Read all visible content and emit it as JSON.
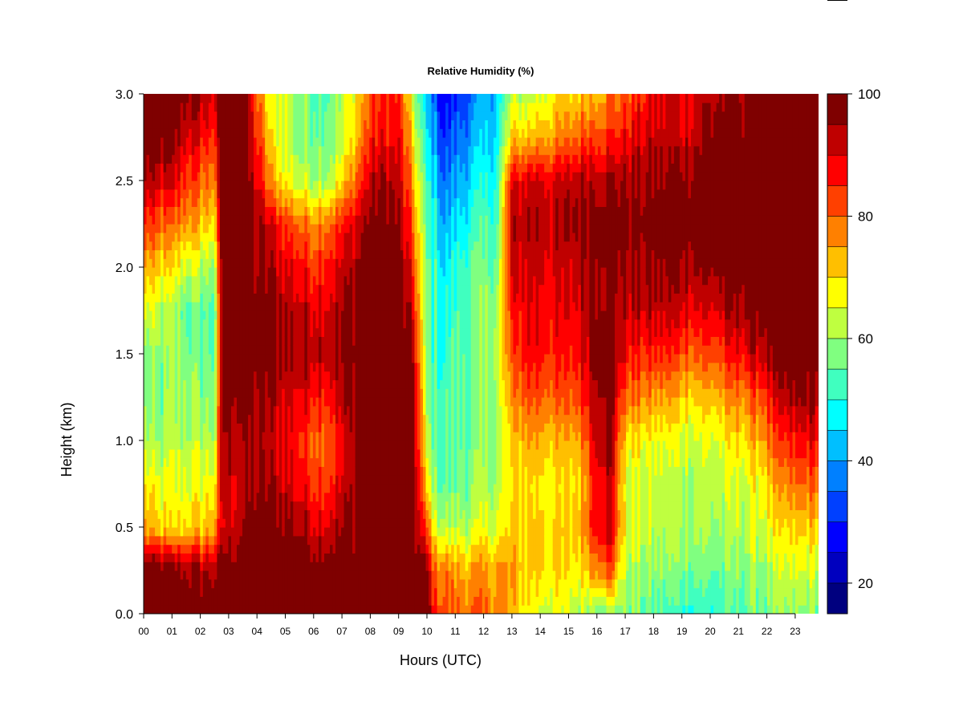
{
  "chart_data": {
    "type": "heatmap",
    "title": "Relative Humidity (%)",
    "xlabel": "Hours (UTC)",
    "ylabel": "Height (km)",
    "xlim": [
      0,
      23.9
    ],
    "ylim": [
      0.0,
      3.0
    ],
    "x_ticks": [
      "00",
      "01",
      "02",
      "03",
      "04",
      "05",
      "06",
      "07",
      "08",
      "09",
      "10",
      "11",
      "12",
      "13",
      "14",
      "15",
      "16",
      "17",
      "18",
      "19",
      "20",
      "21",
      "22",
      "23"
    ],
    "y_ticks": [
      "0.0",
      "0.5",
      "1.0",
      "1.5",
      "2.0",
      "2.5",
      "3.0"
    ],
    "colorbar": {
      "range": [
        15,
        100
      ],
      "levels": [
        15,
        20,
        25,
        30,
        35,
        40,
        45,
        50,
        55,
        60,
        65,
        70,
        75,
        80,
        85,
        90,
        95,
        100
      ],
      "colors": [
        "#00007f",
        "#0000bf",
        "#0000ff",
        "#0040ff",
        "#0080ff",
        "#00bfff",
        "#00ffff",
        "#40ffbf",
        "#80ff80",
        "#bfff40",
        "#ffff00",
        "#ffbf00",
        "#ff8000",
        "#ff4000",
        "#ff0000",
        "#bf0000",
        "#7f0000"
      ],
      "labels": [
        "20",
        "40",
        "60",
        "80",
        "100"
      ],
      "label_values": [
        20,
        40,
        60,
        80,
        100
      ]
    },
    "heights": [
      0.0,
      0.25,
      0.5,
      0.75,
      1.0,
      1.25,
      1.5,
      1.75,
      2.0,
      2.25,
      2.5,
      2.75,
      3.0
    ],
    "columns": [
      {
        "hour": 0.0,
        "rh": [
          100,
          100,
          75,
          70,
          62,
          58,
          58,
          65,
          75,
          85,
          95,
          100,
          100
        ]
      },
      {
        "hour": 0.5,
        "rh": [
          100,
          100,
          70,
          65,
          58,
          55,
          58,
          62,
          70,
          80,
          90,
          98,
          100
        ]
      },
      {
        "hour": 1.0,
        "rh": [
          100,
          98,
          68,
          66,
          62,
          60,
          58,
          60,
          68,
          78,
          90,
          97,
          100
        ]
      },
      {
        "hour": 1.5,
        "rh": [
          100,
          96,
          70,
          66,
          62,
          60,
          58,
          56,
          65,
          78,
          85,
          92,
          98
        ]
      },
      {
        "hour": 2.0,
        "rh": [
          100,
          95,
          70,
          66,
          62,
          58,
          56,
          55,
          62,
          72,
          80,
          88,
          95
        ]
      },
      {
        "hour": 2.5,
        "rh": [
          100,
          95,
          75,
          68,
          62,
          58,
          56,
          55,
          60,
          70,
          78,
          85,
          92
        ]
      },
      {
        "hour": 2.8,
        "rh": [
          100,
          98,
          90,
          92,
          95,
          98,
          100,
          100,
          100,
          100,
          100,
          100,
          100
        ]
      },
      {
        "hour": 3.5,
        "rh": [
          100,
          100,
          95,
          92,
          95,
          98,
          100,
          100,
          100,
          100,
          100,
          100,
          100
        ]
      },
      {
        "hour": 4.0,
        "rh": [
          100,
          100,
          100,
          95,
          92,
          95,
          98,
          98,
          95,
          95,
          90,
          85,
          80
        ]
      },
      {
        "hour": 4.5,
        "rh": [
          100,
          100,
          98,
          95,
          92,
          95,
          98,
          98,
          95,
          90,
          75,
          68,
          65
        ]
      },
      {
        "hour": 5.0,
        "rh": [
          100,
          100,
          98,
          92,
          90,
          92,
          95,
          95,
          90,
          85,
          68,
          65,
          65
        ]
      },
      {
        "hour": 5.5,
        "rh": [
          100,
          100,
          95,
          88,
          85,
          90,
          95,
          92,
          88,
          80,
          62,
          58,
          58
        ]
      },
      {
        "hour": 6.0,
        "rh": [
          100,
          100,
          92,
          85,
          82,
          88,
          95,
          92,
          85,
          78,
          62,
          58,
          56
        ]
      },
      {
        "hour": 6.5,
        "rh": [
          100,
          100,
          92,
          85,
          82,
          88,
          95,
          92,
          88,
          80,
          62,
          58,
          56
        ]
      },
      {
        "hour": 7.0,
        "rh": [
          100,
          100,
          95,
          90,
          88,
          92,
          95,
          95,
          90,
          85,
          68,
          62,
          60
        ]
      },
      {
        "hour": 7.5,
        "rh": [
          100,
          100,
          98,
          95,
          95,
          98,
          100,
          98,
          95,
          92,
          80,
          72,
          70
        ]
      },
      {
        "hour": 8.0,
        "rh": [
          100,
          100,
          100,
          98,
          100,
          100,
          100,
          100,
          100,
          98,
          92,
          85,
          80
        ]
      },
      {
        "hour": 8.5,
        "rh": [
          100,
          100,
          100,
          100,
          100,
          100,
          100,
          100,
          100,
          100,
          95,
          88,
          85
        ]
      },
      {
        "hour": 9.0,
        "rh": [
          100,
          100,
          100,
          100,
          100,
          100,
          100,
          100,
          98,
          95,
          92,
          88,
          85
        ]
      },
      {
        "hour": 9.5,
        "rh": [
          100,
          100,
          100,
          100,
          100,
          100,
          95,
          90,
          85,
          80,
          75,
          70,
          62
        ]
      },
      {
        "hour": 10.0,
        "rh": [
          100,
          95,
          80,
          68,
          62,
          58,
          55,
          55,
          55,
          52,
          50,
          45,
          42
        ]
      },
      {
        "hour": 10.3,
        "rh": [
          85,
          80,
          65,
          58,
          55,
          55,
          52,
          52,
          52,
          50,
          45,
          40,
          35
        ]
      },
      {
        "hour": 10.6,
        "rh": [
          82,
          78,
          62,
          55,
          52,
          52,
          50,
          48,
          45,
          40,
          35,
          30,
          25
        ]
      },
      {
        "hour": 11.0,
        "rh": [
          80,
          75,
          62,
          56,
          55,
          55,
          55,
          52,
          50,
          45,
          40,
          35,
          30
        ]
      },
      {
        "hour": 11.5,
        "rh": [
          80,
          75,
          62,
          58,
          56,
          56,
          56,
          55,
          55,
          50,
          45,
          40,
          35
        ]
      },
      {
        "hour": 12.0,
        "rh": [
          78,
          75,
          64,
          60,
          58,
          58,
          58,
          58,
          55,
          52,
          48,
          42,
          40
        ]
      },
      {
        "hour": 12.5,
        "rh": [
          78,
          76,
          66,
          62,
          60,
          62,
          64,
          62,
          58,
          55,
          52,
          48,
          45
        ]
      },
      {
        "hour": 13.0,
        "rh": [
          72,
          75,
          70,
          68,
          70,
          75,
          80,
          85,
          90,
          92,
          88,
          70,
          62
        ]
      },
      {
        "hour": 13.5,
        "rh": [
          68,
          72,
          72,
          70,
          75,
          82,
          88,
          90,
          92,
          95,
          90,
          72,
          62
        ]
      },
      {
        "hour": 14.0,
        "rh": [
          65,
          72,
          72,
          70,
          75,
          82,
          88,
          90,
          92,
          95,
          92,
          75,
          65
        ]
      },
      {
        "hour": 14.5,
        "rh": [
          65,
          70,
          70,
          68,
          72,
          80,
          85,
          88,
          90,
          92,
          90,
          75,
          68
        ]
      },
      {
        "hour": 15.0,
        "rh": [
          62,
          68,
          70,
          68,
          72,
          80,
          85,
          88,
          90,
          95,
          92,
          78,
          70
        ]
      },
      {
        "hour": 15.5,
        "rh": [
          62,
          70,
          75,
          72,
          78,
          85,
          90,
          92,
          95,
          98,
          95,
          82,
          72
        ]
      },
      {
        "hour": 16.0,
        "rh": [
          60,
          80,
          92,
          92,
          95,
          98,
          100,
          98,
          98,
          100,
          95,
          85,
          75
        ]
      },
      {
        "hour": 16.5,
        "rh": [
          60,
          82,
          92,
          92,
          95,
          98,
          100,
          98,
          98,
          100,
          95,
          85,
          78
        ]
      },
      {
        "hour": 17.0,
        "rh": [
          58,
          62,
          66,
          65,
          70,
          80,
          88,
          92,
          95,
          98,
          95,
          88,
          80
        ]
      },
      {
        "hour": 17.5,
        "rh": [
          56,
          60,
          64,
          64,
          68,
          78,
          85,
          92,
          95,
          98,
          95,
          90,
          85
        ]
      },
      {
        "hour": 18.0,
        "rh": [
          54,
          58,
          62,
          62,
          66,
          75,
          85,
          92,
          96,
          98,
          96,
          92,
          88
        ]
      },
      {
        "hour": 18.5,
        "rh": [
          52,
          58,
          62,
          62,
          66,
          75,
          85,
          92,
          96,
          100,
          96,
          92,
          90
        ]
      },
      {
        "hour": 19.0,
        "rh": [
          52,
          58,
          62,
          62,
          65,
          72,
          82,
          92,
          96,
          100,
          98,
          92,
          90
        ]
      },
      {
        "hour": 19.5,
        "rh": [
          52,
          58,
          62,
          62,
          65,
          72,
          82,
          90,
          96,
          100,
          98,
          94,
          92
        ]
      },
      {
        "hour": 20.0,
        "rh": [
          50,
          56,
          60,
          62,
          65,
          72,
          82,
          90,
          96,
          100,
          100,
          96,
          94
        ]
      },
      {
        "hour": 20.5,
        "rh": [
          52,
          56,
          60,
          62,
          66,
          74,
          84,
          92,
          98,
          100,
          100,
          98,
          96
        ]
      },
      {
        "hour": 21.0,
        "rh": [
          54,
          58,
          62,
          64,
          70,
          78,
          88,
          95,
          100,
          100,
          100,
          98,
          96
        ]
      },
      {
        "hour": 21.5,
        "rh": [
          56,
          60,
          64,
          66,
          72,
          80,
          92,
          98,
          100,
          100,
          100,
          100,
          98
        ]
      },
      {
        "hour": 22.0,
        "rh": [
          56,
          60,
          66,
          70,
          78,
          85,
          95,
          100,
          100,
          100,
          100,
          100,
          100
        ]
      },
      {
        "hour": 22.5,
        "rh": [
          58,
          62,
          68,
          74,
          82,
          90,
          98,
          100,
          100,
          100,
          100,
          100,
          100
        ]
      },
      {
        "hour": 23.0,
        "rh": [
          58,
          64,
          70,
          78,
          86,
          94,
          100,
          100,
          100,
          100,
          100,
          100,
          100
        ]
      },
      {
        "hour": 23.5,
        "rh": [
          58,
          64,
          72,
          80,
          88,
          96,
          100,
          100,
          100,
          100,
          100,
          100,
          100
        ]
      },
      {
        "hour": 23.9,
        "rh": [
          58,
          64,
          72,
          80,
          88,
          96,
          100,
          100,
          100,
          100,
          100,
          100,
          100
        ]
      }
    ]
  }
}
